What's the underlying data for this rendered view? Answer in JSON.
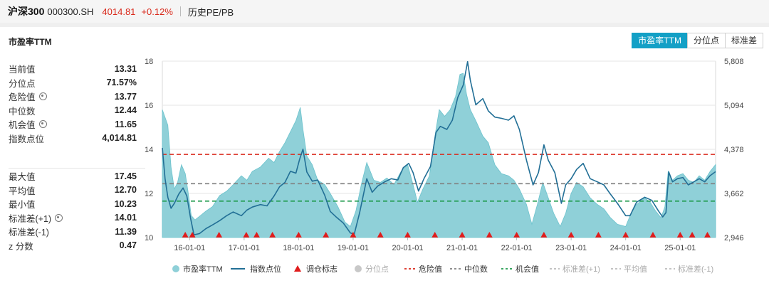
{
  "header": {
    "name": "沪深300",
    "code": "000300.SH",
    "price": "4014.81",
    "change": "+0.12%",
    "history_link": "历史PE/PB"
  },
  "panel": {
    "title": "市盈率TTM",
    "tabs": [
      {
        "label": "市盈率TTM",
        "active": true
      },
      {
        "label": "分位点",
        "active": false
      },
      {
        "label": "标准差",
        "active": false
      }
    ]
  },
  "stats_top": [
    {
      "label": "当前值",
      "value": "13.31",
      "gear": false
    },
    {
      "label": "分位点",
      "value": "71.57%",
      "gear": false
    },
    {
      "label": "危险值",
      "value": "13.77",
      "gear": true
    },
    {
      "label": "中位数",
      "value": "12.44",
      "gear": false
    },
    {
      "label": "机会值",
      "value": "11.65",
      "gear": true
    },
    {
      "label": "指数点位",
      "value": "4,014.81",
      "gear": false
    }
  ],
  "stats_bottom": [
    {
      "label": "最大值",
      "value": "17.45",
      "gear": false
    },
    {
      "label": "平均值",
      "value": "12.70",
      "gear": false
    },
    {
      "label": "最小值",
      "value": "10.23",
      "gear": false
    },
    {
      "label": "标准差(+1)",
      "value": "14.01",
      "gear": true
    },
    {
      "label": "标准差(-1)",
      "value": "11.39",
      "gear": false
    },
    {
      "label": "z 分数",
      "value": "0.47",
      "gear": false
    }
  ],
  "colors": {
    "area": "#8fd0d8",
    "area_edge": "#6cc3cd",
    "index_line": "#226f96",
    "danger": "#d9281a",
    "median": "#808080",
    "opportunity": "#1e9a4c",
    "accent": "#13a0c6"
  },
  "chart_data": {
    "type": "area",
    "x_ticks": [
      "16-01-01",
      "17-01-01",
      "18-01-01",
      "19-01-01",
      "20-01-01",
      "21-01-01",
      "22-01-01",
      "23-01-01",
      "24-01-01",
      "25-01-01"
    ],
    "x_range": [
      2015.5,
      2025.65
    ],
    "left_axis": {
      "ticks": [
        "10",
        "12",
        "14",
        "16",
        "18"
      ],
      "ylim": [
        10,
        18
      ]
    },
    "right_axis": {
      "ticks": [
        "2,946",
        "3,662",
        "4,378",
        "5,094",
        "5,808"
      ],
      "ylim": [
        2946,
        5808
      ]
    },
    "reference_lines": [
      {
        "name": "危险值",
        "value": 13.77,
        "style": "dashed",
        "color": "#d9281a"
      },
      {
        "name": "中位数",
        "value": 12.44,
        "style": "dashed",
        "color": "#808080"
      },
      {
        "name": "机会值",
        "value": 11.65,
        "style": "dashed",
        "color": "#1e9a4c"
      }
    ],
    "series": [
      {
        "name": "市盈率TTM",
        "kind": "area",
        "axis": "left",
        "points": [
          [
            2015.5,
            15.8
          ],
          [
            2015.6,
            15.1
          ],
          [
            2015.66,
            13.2
          ],
          [
            2015.72,
            12.2
          ],
          [
            2015.78,
            12.5
          ],
          [
            2015.85,
            13.3
          ],
          [
            2015.92,
            12.9
          ],
          [
            2015.97,
            12.1
          ],
          [
            2016.03,
            11.0
          ],
          [
            2016.1,
            10.8
          ],
          [
            2016.2,
            11.0
          ],
          [
            2016.3,
            11.2
          ],
          [
            2016.42,
            11.4
          ],
          [
            2016.55,
            11.9
          ],
          [
            2016.68,
            12.1
          ],
          [
            2016.8,
            12.4
          ],
          [
            2016.95,
            12.8
          ],
          [
            2017.05,
            12.6
          ],
          [
            2017.15,
            13.0
          ],
          [
            2017.3,
            13.2
          ],
          [
            2017.45,
            13.6
          ],
          [
            2017.55,
            13.4
          ],
          [
            2017.65,
            13.9
          ],
          [
            2017.75,
            14.3
          ],
          [
            2017.85,
            14.8
          ],
          [
            2017.95,
            15.3
          ],
          [
            2018.03,
            15.9
          ],
          [
            2018.08,
            14.9
          ],
          [
            2018.15,
            13.7
          ],
          [
            2018.25,
            13.3
          ],
          [
            2018.35,
            12.6
          ],
          [
            2018.48,
            12.4
          ],
          [
            2018.58,
            12.0
          ],
          [
            2018.72,
            11.4
          ],
          [
            2018.85,
            10.7
          ],
          [
            2018.95,
            10.5
          ],
          [
            2019.05,
            11.2
          ],
          [
            2019.15,
            12.4
          ],
          [
            2019.25,
            13.4
          ],
          [
            2019.38,
            12.6
          ],
          [
            2019.5,
            12.5
          ],
          [
            2019.62,
            12.7
          ],
          [
            2019.75,
            12.4
          ],
          [
            2019.88,
            13.0
          ],
          [
            2020.0,
            13.3
          ],
          [
            2020.1,
            12.4
          ],
          [
            2020.18,
            11.6
          ],
          [
            2020.28,
            12.2
          ],
          [
            2020.4,
            12.8
          ],
          [
            2020.5,
            14.6
          ],
          [
            2020.58,
            15.8
          ],
          [
            2020.68,
            15.5
          ],
          [
            2020.78,
            15.8
          ],
          [
            2020.88,
            16.4
          ],
          [
            2020.96,
            17.4
          ],
          [
            2021.02,
            17.45
          ],
          [
            2021.08,
            16.5
          ],
          [
            2021.15,
            15.8
          ],
          [
            2021.25,
            15.3
          ],
          [
            2021.38,
            14.6
          ],
          [
            2021.48,
            14.3
          ],
          [
            2021.6,
            13.3
          ],
          [
            2021.72,
            12.9
          ],
          [
            2021.85,
            12.8
          ],
          [
            2021.95,
            12.6
          ],
          [
            2022.05,
            12.2
          ],
          [
            2022.18,
            11.5
          ],
          [
            2022.28,
            10.6
          ],
          [
            2022.38,
            11.5
          ],
          [
            2022.48,
            12.5
          ],
          [
            2022.58,
            11.8
          ],
          [
            2022.68,
            11.1
          ],
          [
            2022.8,
            10.5
          ],
          [
            2022.9,
            11.1
          ],
          [
            2023.0,
            12.0
          ],
          [
            2023.1,
            12.5
          ],
          [
            2023.22,
            12.3
          ],
          [
            2023.35,
            11.8
          ],
          [
            2023.48,
            11.5
          ],
          [
            2023.6,
            11.3
          ],
          [
            2023.72,
            10.9
          ],
          [
            2023.85,
            10.6
          ],
          [
            2024.0,
            10.5
          ],
          [
            2024.1,
            11.1
          ],
          [
            2024.2,
            11.5
          ],
          [
            2024.35,
            11.8
          ],
          [
            2024.45,
            11.6
          ],
          [
            2024.55,
            11.2
          ],
          [
            2024.65,
            10.9
          ],
          [
            2024.72,
            11.4
          ],
          [
            2024.78,
            13.0
          ],
          [
            2024.86,
            12.6
          ],
          [
            2024.95,
            12.8
          ],
          [
            2025.05,
            12.9
          ],
          [
            2025.15,
            12.6
          ],
          [
            2025.25,
            12.5
          ],
          [
            2025.35,
            12.8
          ],
          [
            2025.45,
            12.6
          ],
          [
            2025.55,
            13.0
          ],
          [
            2025.65,
            13.31
          ]
        ]
      },
      {
        "name": "指数点位",
        "kind": "line",
        "axis": "right",
        "points": [
          [
            2015.5,
            4400
          ],
          [
            2015.55,
            3900
          ],
          [
            2015.6,
            3600
          ],
          [
            2015.66,
            3420
          ],
          [
            2015.72,
            3500
          ],
          [
            2015.8,
            3650
          ],
          [
            2015.88,
            3750
          ],
          [
            2015.95,
            3620
          ],
          [
            2016.02,
            3250
          ],
          [
            2016.08,
            2990
          ],
          [
            2016.18,
            3010
          ],
          [
            2016.3,
            3090
          ],
          [
            2016.42,
            3150
          ],
          [
            2016.55,
            3220
          ],
          [
            2016.68,
            3300
          ],
          [
            2016.8,
            3360
          ],
          [
            2016.95,
            3300
          ],
          [
            2017.05,
            3390
          ],
          [
            2017.15,
            3440
          ],
          [
            2017.3,
            3480
          ],
          [
            2017.42,
            3460
          ],
          [
            2017.55,
            3620
          ],
          [
            2017.65,
            3770
          ],
          [
            2017.75,
            3840
          ],
          [
            2017.85,
            4020
          ],
          [
            2017.95,
            3990
          ],
          [
            2018.02,
            4220
          ],
          [
            2018.08,
            4380
          ],
          [
            2018.15,
            4010
          ],
          [
            2018.25,
            3860
          ],
          [
            2018.35,
            3880
          ],
          [
            2018.48,
            3630
          ],
          [
            2018.58,
            3370
          ],
          [
            2018.7,
            3270
          ],
          [
            2018.82,
            3180
          ],
          [
            2018.95,
            3020
          ],
          [
            2019.02,
            3000
          ],
          [
            2019.12,
            3350
          ],
          [
            2019.25,
            3900
          ],
          [
            2019.35,
            3680
          ],
          [
            2019.45,
            3780
          ],
          [
            2019.58,
            3850
          ],
          [
            2019.7,
            3900
          ],
          [
            2019.82,
            3880
          ],
          [
            2019.92,
            4080
          ],
          [
            2020.02,
            4150
          ],
          [
            2020.1,
            4000
          ],
          [
            2020.2,
            3700
          ],
          [
            2020.3,
            3900
          ],
          [
            2020.42,
            4100
          ],
          [
            2020.52,
            4650
          ],
          [
            2020.6,
            4750
          ],
          [
            2020.72,
            4700
          ],
          [
            2020.82,
            4850
          ],
          [
            2020.92,
            5220
          ],
          [
            2021.02,
            5420
          ],
          [
            2021.1,
            5800
          ],
          [
            2021.15,
            5500
          ],
          [
            2021.25,
            5100
          ],
          [
            2021.38,
            5200
          ],
          [
            2021.48,
            5000
          ],
          [
            2021.6,
            4900
          ],
          [
            2021.72,
            4880
          ],
          [
            2021.85,
            4850
          ],
          [
            2021.95,
            4920
          ],
          [
            2022.05,
            4700
          ],
          [
            2022.18,
            4200
          ],
          [
            2022.3,
            3800
          ],
          [
            2022.4,
            4000
          ],
          [
            2022.5,
            4450
          ],
          [
            2022.58,
            4200
          ],
          [
            2022.7,
            4000
          ],
          [
            2022.82,
            3500
          ],
          [
            2022.9,
            3800
          ],
          [
            2023.0,
            3900
          ],
          [
            2023.1,
            4050
          ],
          [
            2023.22,
            4150
          ],
          [
            2023.35,
            3900
          ],
          [
            2023.48,
            3850
          ],
          [
            2023.6,
            3800
          ],
          [
            2023.72,
            3650
          ],
          [
            2023.85,
            3500
          ],
          [
            2024.0,
            3300
          ],
          [
            2024.08,
            3300
          ],
          [
            2024.2,
            3520
          ],
          [
            2024.35,
            3600
          ],
          [
            2024.48,
            3550
          ],
          [
            2024.6,
            3380
          ],
          [
            2024.68,
            3280
          ],
          [
            2024.74,
            3350
          ],
          [
            2024.79,
            4010
          ],
          [
            2024.86,
            3850
          ],
          [
            2024.95,
            3900
          ],
          [
            2025.05,
            3920
          ],
          [
            2025.15,
            3800
          ],
          [
            2025.25,
            3850
          ],
          [
            2025.35,
            3900
          ],
          [
            2025.45,
            3850
          ],
          [
            2025.55,
            3950
          ],
          [
            2025.65,
            4014.81
          ]
        ]
      }
    ],
    "markers": {
      "name": "调仓标志",
      "x": [
        2015.92,
        2016.05,
        2016.54,
        2017.04,
        2017.23,
        2017.52,
        2018.0,
        2018.5,
        2019.0,
        2019.5,
        2020.0,
        2020.5,
        2021.0,
        2021.5,
        2022.0,
        2022.5,
        2023.0,
        2023.5,
        2024.0,
        2024.5,
        2025.0,
        2025.22,
        2025.5
      ]
    },
    "legend": [
      "市盈率TTM",
      "指数点位",
      "调仓标志",
      "分位点",
      "危险值",
      "中位数",
      "机会值",
      "标准差(+1)",
      "平均值",
      "标准差(-1)"
    ]
  }
}
